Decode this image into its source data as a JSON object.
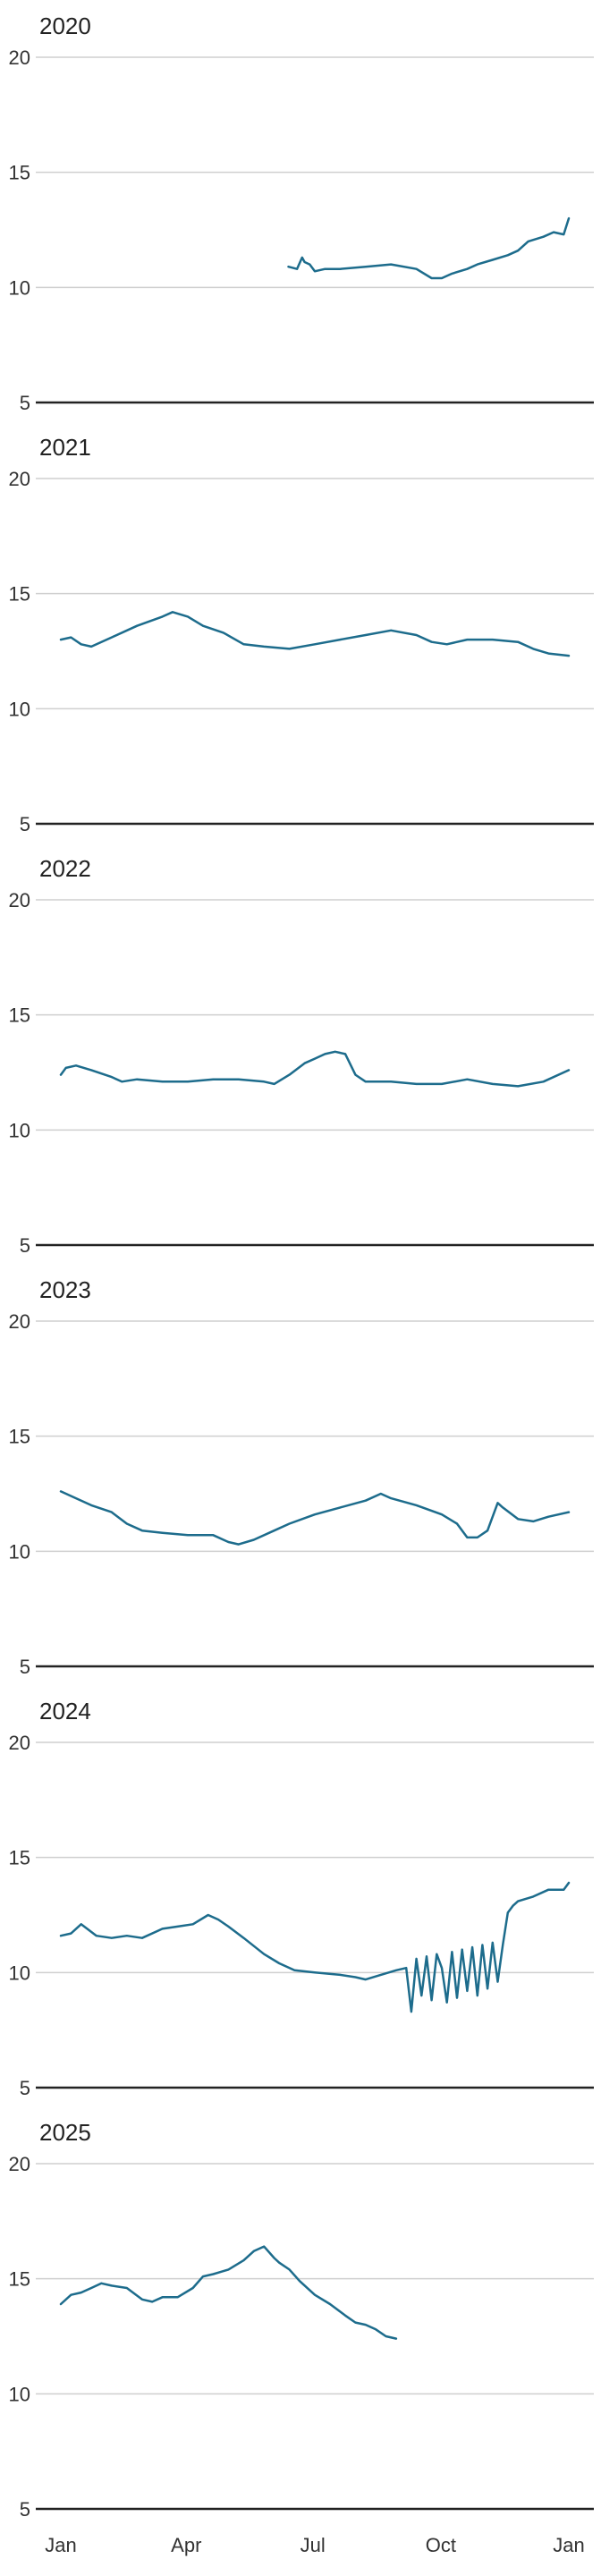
{
  "chart_data": [
    {
      "type": "line",
      "title": "2020",
      "ylim": [
        5,
        20
      ],
      "yticks": [
        5,
        10,
        15,
        20
      ],
      "xlim": [
        "Jan",
        "Jan"
      ],
      "grid": true,
      "x": [
        0.448,
        0.465,
        0.475,
        0.48,
        0.49,
        0.5,
        0.52,
        0.55,
        0.6,
        0.65,
        0.7,
        0.73,
        0.75,
        0.77,
        0.8,
        0.82,
        0.85,
        0.88,
        0.9,
        0.92,
        0.95,
        0.97,
        0.99,
        1.0
      ],
      "series": [
        {
          "values": [
            10.9,
            10.8,
            11.3,
            11.1,
            11.0,
            10.7,
            10.8,
            10.8,
            10.9,
            11.0,
            10.8,
            10.4,
            10.4,
            10.6,
            10.8,
            11.0,
            11.2,
            11.4,
            11.6,
            12.0,
            12.2,
            12.4,
            12.3,
            13.0
          ]
        }
      ]
    },
    {
      "type": "line",
      "title": "2021",
      "ylim": [
        5,
        20
      ],
      "yticks": [
        5,
        10,
        15,
        20
      ],
      "xlim": [
        "Jan",
        "Jan"
      ],
      "grid": true,
      "x": [
        0.0,
        0.02,
        0.04,
        0.06,
        0.1,
        0.15,
        0.2,
        0.22,
        0.25,
        0.28,
        0.32,
        0.36,
        0.4,
        0.45,
        0.5,
        0.55,
        0.6,
        0.65,
        0.7,
        0.73,
        0.76,
        0.8,
        0.85,
        0.9,
        0.93,
        0.96,
        1.0
      ],
      "series": [
        {
          "values": [
            13.0,
            13.1,
            12.8,
            12.7,
            13.1,
            13.6,
            14.0,
            14.2,
            14.0,
            13.6,
            13.3,
            12.8,
            12.7,
            12.6,
            12.8,
            13.0,
            13.2,
            13.4,
            13.2,
            12.9,
            12.8,
            13.0,
            13.0,
            12.9,
            12.6,
            12.4,
            12.3
          ]
        }
      ]
    },
    {
      "type": "line",
      "title": "2022",
      "ylim": [
        5,
        20
      ],
      "yticks": [
        5,
        10,
        15,
        20
      ],
      "xlim": [
        "Jan",
        "Jan"
      ],
      "grid": true,
      "x": [
        0.0,
        0.01,
        0.03,
        0.06,
        0.1,
        0.12,
        0.15,
        0.2,
        0.25,
        0.3,
        0.35,
        0.4,
        0.42,
        0.45,
        0.48,
        0.5,
        0.52,
        0.54,
        0.56,
        0.58,
        0.6,
        0.65,
        0.7,
        0.75,
        0.8,
        0.85,
        0.9,
        0.95,
        1.0
      ],
      "series": [
        {
          "values": [
            12.4,
            12.7,
            12.8,
            12.6,
            12.3,
            12.1,
            12.2,
            12.1,
            12.1,
            12.2,
            12.2,
            12.1,
            12.0,
            12.4,
            12.9,
            13.1,
            13.3,
            13.4,
            13.3,
            12.4,
            12.1,
            12.1,
            12.0,
            12.0,
            12.2,
            12.0,
            11.9,
            12.1,
            12.6
          ]
        }
      ]
    },
    {
      "type": "line",
      "title": "2023",
      "ylim": [
        5,
        20
      ],
      "yticks": [
        5,
        10,
        15,
        20
      ],
      "xlim": [
        "Jan",
        "Jan"
      ],
      "grid": true,
      "x": [
        0.0,
        0.03,
        0.06,
        0.1,
        0.13,
        0.16,
        0.2,
        0.25,
        0.3,
        0.33,
        0.35,
        0.38,
        0.42,
        0.45,
        0.5,
        0.55,
        0.6,
        0.63,
        0.65,
        0.7,
        0.75,
        0.78,
        0.8,
        0.82,
        0.84,
        0.86,
        0.87,
        0.9,
        0.93,
        0.96,
        1.0
      ],
      "series": [
        {
          "values": [
            12.6,
            12.3,
            12.0,
            11.7,
            11.2,
            10.9,
            10.8,
            10.7,
            10.7,
            10.4,
            10.3,
            10.5,
            10.9,
            11.2,
            11.6,
            11.9,
            12.2,
            12.5,
            12.3,
            12.0,
            11.6,
            11.2,
            10.6,
            10.6,
            10.9,
            12.1,
            11.9,
            11.4,
            11.3,
            11.5,
            11.7
          ]
        }
      ]
    },
    {
      "type": "line",
      "title": "2024",
      "ylim": [
        5,
        20
      ],
      "yticks": [
        5,
        10,
        15,
        20
      ],
      "xlim": [
        "Jan",
        "Jan"
      ],
      "grid": true,
      "x": [
        0.0,
        0.02,
        0.04,
        0.07,
        0.1,
        0.13,
        0.16,
        0.2,
        0.23,
        0.26,
        0.29,
        0.31,
        0.33,
        0.36,
        0.4,
        0.43,
        0.46,
        0.5,
        0.55,
        0.58,
        0.6,
        0.63,
        0.66,
        0.68,
        0.69,
        0.7,
        0.71,
        0.72,
        0.73,
        0.74,
        0.75,
        0.76,
        0.77,
        0.78,
        0.79,
        0.8,
        0.81,
        0.82,
        0.83,
        0.84,
        0.85,
        0.86,
        0.87,
        0.88,
        0.89,
        0.9,
        0.93,
        0.96,
        0.99,
        1.0
      ],
      "series": [
        {
          "values": [
            11.6,
            11.7,
            12.1,
            11.6,
            11.5,
            11.6,
            11.5,
            11.9,
            12.0,
            12.1,
            12.5,
            12.3,
            12.0,
            11.5,
            10.8,
            10.4,
            10.1,
            10.0,
            9.9,
            9.8,
            9.7,
            9.9,
            10.1,
            10.2,
            8.3,
            10.6,
            9.0,
            10.7,
            8.8,
            10.8,
            10.2,
            8.7,
            10.9,
            8.9,
            11.0,
            9.2,
            11.1,
            9.0,
            11.2,
            9.3,
            11.3,
            9.6,
            11.2,
            12.6,
            12.9,
            13.1,
            13.3,
            13.6,
            13.6,
            13.9
          ]
        }
      ]
    },
    {
      "type": "line",
      "title": "2025",
      "ylim": [
        5,
        20
      ],
      "yticks": [
        5,
        10,
        15,
        20
      ],
      "xlim": [
        "Jan",
        "Jan"
      ],
      "grid": true,
      "x": [
        0.0,
        0.02,
        0.04,
        0.06,
        0.08,
        0.1,
        0.13,
        0.16,
        0.18,
        0.2,
        0.23,
        0.26,
        0.28,
        0.3,
        0.33,
        0.36,
        0.38,
        0.4,
        0.42,
        0.43,
        0.45,
        0.47,
        0.5,
        0.53,
        0.56,
        0.58,
        0.6,
        0.62,
        0.64,
        0.66
      ],
      "series": [
        {
          "values": [
            13.9,
            14.3,
            14.4,
            14.6,
            14.8,
            14.7,
            14.6,
            14.1,
            14.0,
            14.2,
            14.2,
            14.6,
            15.1,
            15.2,
            15.4,
            15.8,
            16.2,
            16.4,
            15.9,
            15.7,
            15.4,
            14.9,
            14.3,
            13.9,
            13.4,
            13.1,
            13.0,
            12.8,
            12.5,
            12.4
          ]
        }
      ]
    }
  ],
  "x_axis": {
    "ticks": [
      "Jan",
      "Apr",
      "Jul",
      "Oct",
      "Jan"
    ],
    "positions": [
      0.0,
      0.247,
      0.496,
      0.748,
      1.0
    ]
  },
  "colors": {
    "series": "#1d6c8c",
    "grid": "#cfcfcf",
    "baseline": "#222222"
  }
}
